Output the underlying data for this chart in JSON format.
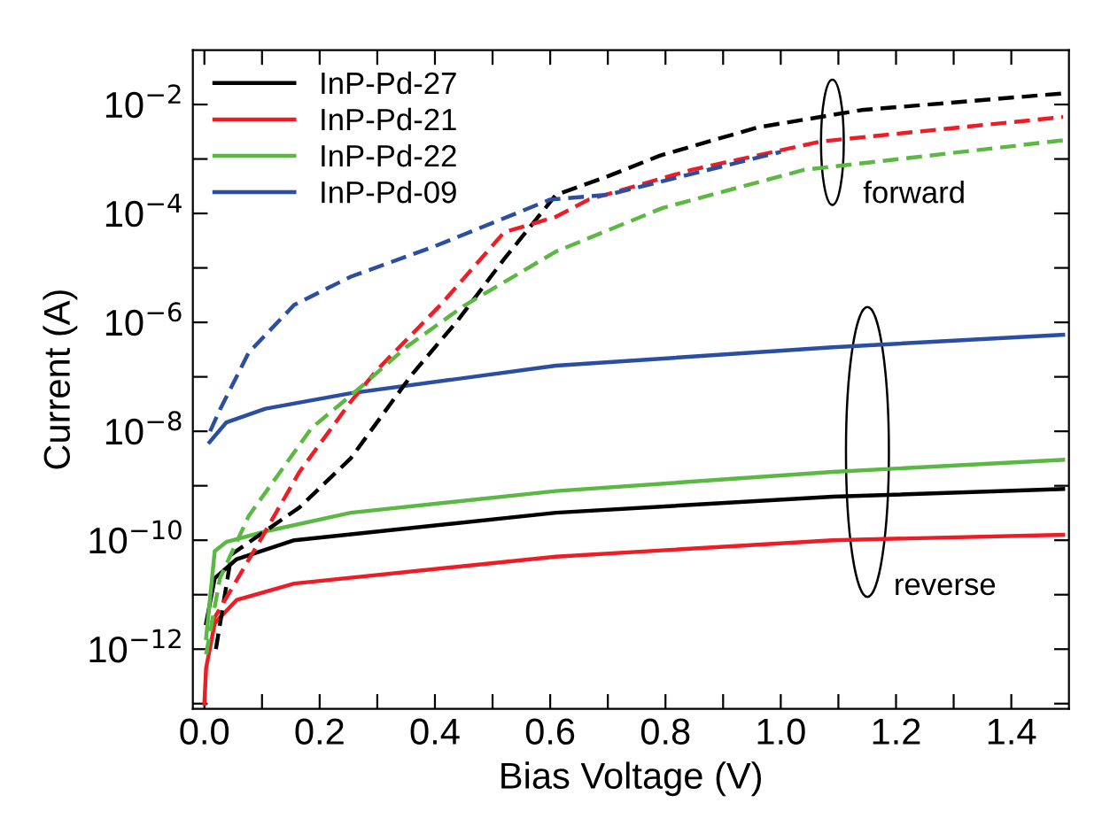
{
  "chart_data": {
    "type": "line",
    "xlabel": "Bias Voltage (V)",
    "ylabel": "Current (A)",
    "log": "y",
    "grid": false,
    "legend": "top left",
    "marker": "none",
    "xlim": [
      -0.02,
      1.5
    ],
    "ylim": [
      8e-14,
      0.1
    ],
    "xticks": [
      {
        "value": 0.0,
        "label": "0.0"
      },
      {
        "value": 0.1,
        "label": null
      },
      {
        "value": 0.2,
        "label": "0.2"
      },
      {
        "value": 0.3,
        "label": null
      },
      {
        "value": 0.4,
        "label": "0.4"
      },
      {
        "value": 0.5,
        "label": null
      },
      {
        "value": 0.6,
        "label": "0.6"
      },
      {
        "value": 0.7,
        "label": null
      },
      {
        "value": 0.8,
        "label": "0.8"
      },
      {
        "value": 0.9,
        "label": null
      },
      {
        "value": 1.0,
        "label": "1.0"
      },
      {
        "value": 1.1,
        "label": null
      },
      {
        "value": 1.2,
        "label": "1.2"
      },
      {
        "value": 1.3,
        "label": null
      },
      {
        "value": 1.4,
        "label": "1.4"
      }
    ],
    "yticks": [
      {
        "value": 1e-13,
        "label": null
      },
      {
        "value": 1e-12,
        "label": "10$^{−12}$"
      },
      {
        "value": 1e-11,
        "label": null
      },
      {
        "value": 1e-10,
        "label": "10$^{−10}$"
      },
      {
        "value": 1e-09,
        "label": null
      },
      {
        "value": 1e-08,
        "label": "10$^{−8}$"
      },
      {
        "value": 1e-07,
        "label": null
      },
      {
        "value": 1e-06,
        "label": "10$^{−6}$"
      },
      {
        "value": 1e-05,
        "label": null
      },
      {
        "value": 0.0001,
        "label": "10$^{−4}$"
      },
      {
        "value": 0.001,
        "label": null
      },
      {
        "value": 0.01,
        "label": "10$^{−2}$"
      }
    ],
    "annotations": [
      "forward",
      "reverse"
    ],
    "series": [
      {
        "name": "InP-Pd-27",
        "color": "#000000",
        "line_style": "solid",
        "x": [
          0.003,
          0.018,
          0.056,
          0.156,
          0.61,
          1.09,
          1.49
        ],
        "values": [
          3e-12,
          2e-11,
          4.5e-11,
          1e-10,
          3.2e-10,
          6.3e-10,
          8.7e-10
        ]
      },
      {
        "name": "InP-Pd-21",
        "color": "#ee1c25",
        "line_style": "solid",
        "x": [
          0.0,
          0.003,
          0.018,
          0.056,
          0.156,
          0.61,
          1.09,
          1.49
        ],
        "values": [
          1e-13,
          4.5e-13,
          3e-12,
          8e-12,
          1.6e-11,
          5e-11,
          1e-10,
          1.26e-10
        ]
      },
      {
        "name": "InP-Pd-22",
        "color": "#5bb842",
        "line_style": "solid",
        "x": [
          0.003,
          0.018,
          0.038,
          0.106,
          0.254,
          0.61,
          1.09,
          1.49
        ],
        "values": [
          1.6e-12,
          6.3e-11,
          9.3e-11,
          1.45e-10,
          3.2e-10,
          8e-10,
          1.8e-09,
          3e-09
        ]
      },
      {
        "name": "InP-Pd-09",
        "color": "#2b4ea2",
        "line_style": "solid",
        "x": [
          0.009,
          0.038,
          0.106,
          0.254,
          0.61,
          1.09,
          1.49
        ],
        "values": [
          6.3e-09,
          1.45e-08,
          2.6e-08,
          5e-08,
          1.6e-07,
          3.5e-07,
          5.9e-07
        ]
      },
      {
        "color": "#000000",
        "line_style": "dashed",
        "x": [
          0.02,
          0.047,
          0.165,
          0.254,
          0.36,
          0.44,
          0.52,
          0.61,
          0.7,
          0.79,
          0.96,
          1.14,
          1.49
        ],
        "values": [
          1e-12,
          5.5e-11,
          4e-10,
          3.2e-09,
          1.1e-07,
          1.1e-06,
          1.45e-05,
          0.00022,
          0.00048,
          0.00115,
          0.0038,
          0.0079,
          0.016
        ]
      },
      {
        "color": "#ee1c25",
        "line_style": "dashed",
        "x": [
          0.012,
          0.097,
          0.165,
          0.254,
          0.3,
          0.41,
          0.52,
          0.61,
          0.667,
          0.845,
          1.07,
          1.49
        ],
        "values": [
          3e-12,
          1e-10,
          1.8e-09,
          3.5e-08,
          1.35e-07,
          2.1e-06,
          4.5e-05,
          8.7e-05,
          0.00018,
          0.00063,
          0.0021,
          0.0059
        ]
      },
      {
        "color": "#5bb842",
        "line_style": "dashed",
        "x": [
          0.003,
          0.027,
          0.077,
          0.186,
          0.27,
          0.35,
          0.45,
          0.61,
          0.795,
          1.04,
          1.49
        ],
        "values": [
          8e-13,
          2e-11,
          2.8e-10,
          1.15e-08,
          6.3e-08,
          3.5e-07,
          2e-06,
          2e-05,
          0.000126,
          0.00063,
          0.0022
        ]
      },
      {
        "color": "#2b4ea2",
        "line_style": "dashed",
        "x": [
          0.01,
          0.027,
          0.077,
          0.156,
          0.254,
          0.4,
          0.6,
          0.7,
          1.0
        ],
        "values": [
          1e-08,
          2.5e-08,
          2.8e-07,
          2.1e-06,
          6.9e-06,
          2.5e-05,
          0.00018,
          0.00022,
          0.00135
        ]
      }
    ]
  }
}
